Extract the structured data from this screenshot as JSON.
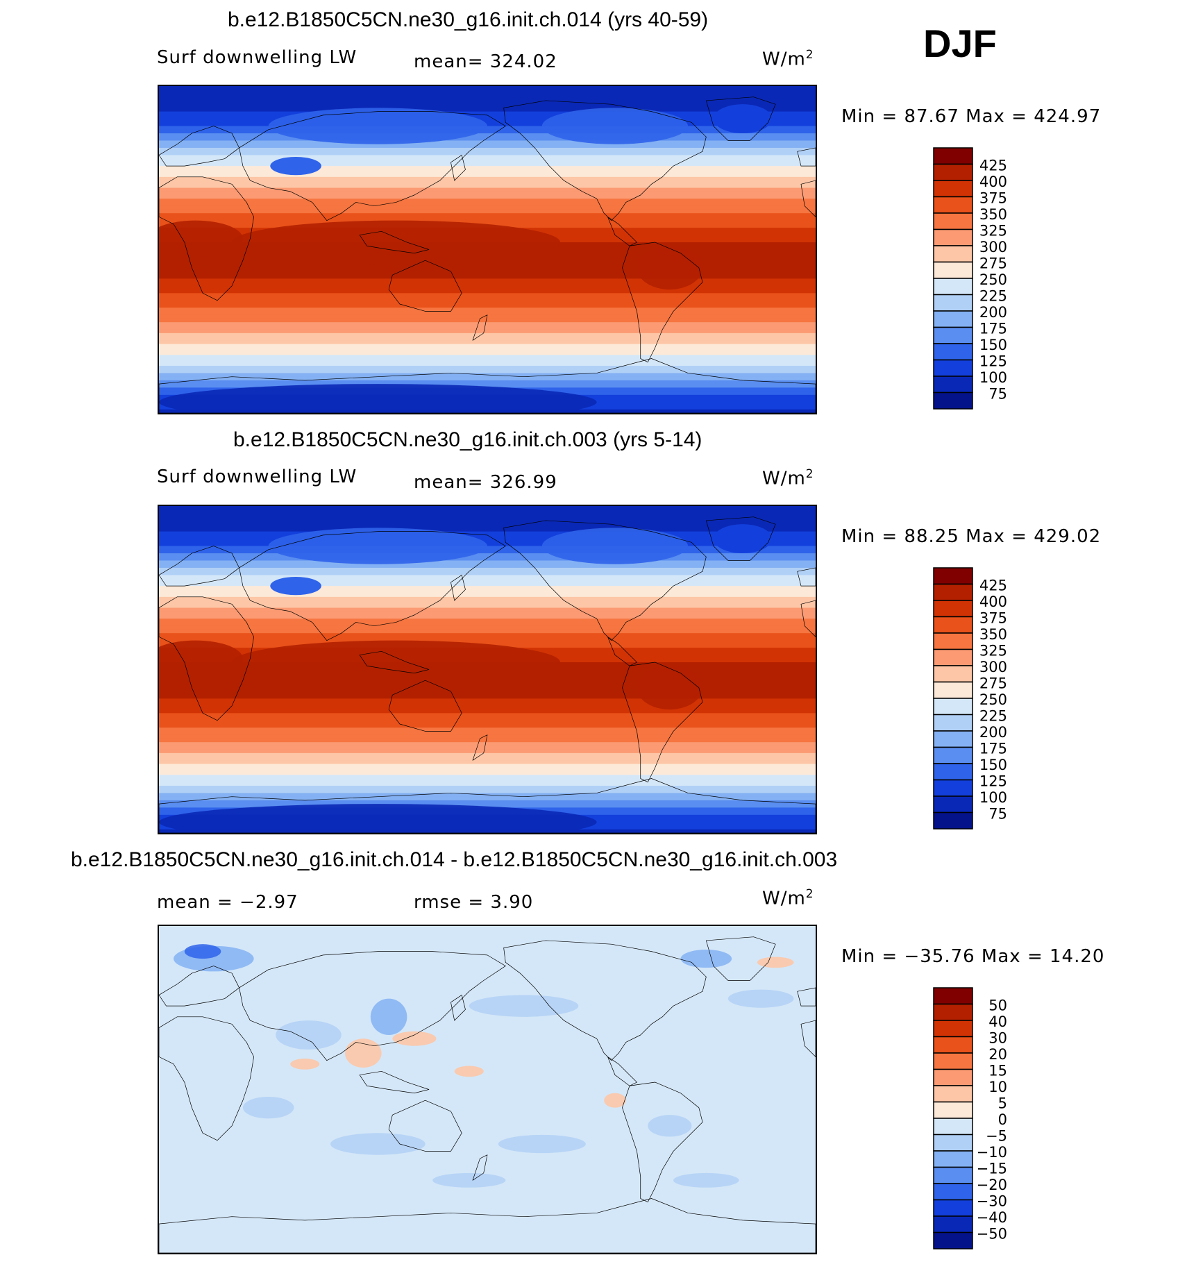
{
  "season": "DJF",
  "panels": [
    {
      "title": "b.e12.B1850C5CN.ne30_g16.init.ch.014 (yrs 40-59)",
      "left_label": "Surf downwelling LW",
      "center_label": "mean= 324.02",
      "units": "W/m",
      "units_sup": "2",
      "stats": "Min =   87.67 Max = 424.97",
      "colorbar": {
        "labels": [
          "425",
          "400",
          "375",
          "350",
          "325",
          "300",
          "275",
          "250",
          "225",
          "200",
          "175",
          "150",
          "125",
          "100",
          "75"
        ],
        "colors": [
          "#800000",
          "#b32000",
          "#d23304",
          "#e9521a",
          "#f67540",
          "#fb9a73",
          "#fdc6a6",
          "#fde9d8",
          "#d4e7f8",
          "#b1d0f6",
          "#84b1f3",
          "#5a8ef0",
          "#2f63ea",
          "#1340dc",
          "#0a28b6",
          "#04138a"
        ]
      },
      "field": "mean"
    },
    {
      "title": "b.e12.B1850C5CN.ne30_g16.init.ch.003 (yrs 5-14)",
      "left_label": "Surf downwelling LW",
      "center_label": "mean= 326.99",
      "units": "W/m",
      "units_sup": "2",
      "stats": "Min =   88.25 Max = 429.02",
      "colorbar": {
        "labels": [
          "425",
          "400",
          "375",
          "350",
          "325",
          "300",
          "275",
          "250",
          "225",
          "200",
          "175",
          "150",
          "125",
          "100",
          "75"
        ],
        "colors": [
          "#800000",
          "#b32000",
          "#d23304",
          "#e9521a",
          "#f67540",
          "#fb9a73",
          "#fdc6a6",
          "#fde9d8",
          "#d4e7f8",
          "#b1d0f6",
          "#84b1f3",
          "#5a8ef0",
          "#2f63ea",
          "#1340dc",
          "#0a28b6",
          "#04138a"
        ]
      },
      "field": "mean"
    },
    {
      "title": "b.e12.B1850C5CN.ne30_g16.init.ch.014 - b.e12.B1850C5CN.ne30_g16.init.ch.003",
      "left_label": "mean =   −2.97",
      "center_label": "rmse =    3.90",
      "units": "W/m",
      "units_sup": "2",
      "stats": "Min = −35.76 Max =   14.20",
      "colorbar": {
        "labels": [
          "50",
          "40",
          "30",
          "20",
          "15",
          "10",
          "5",
          "0",
          "−5",
          "−10",
          "−15",
          "−20",
          "−30",
          "−40",
          "−50"
        ],
        "colors": [
          "#800000",
          "#b32000",
          "#d23304",
          "#e9521a",
          "#f67540",
          "#fb9a73",
          "#fdc6a6",
          "#fde9d8",
          "#d4e7f8",
          "#b1d0f6",
          "#84b1f3",
          "#5a8ef0",
          "#2f63ea",
          "#1340dc",
          "#0a28b6",
          "#04138a"
        ]
      },
      "field": "diff"
    }
  ]
}
